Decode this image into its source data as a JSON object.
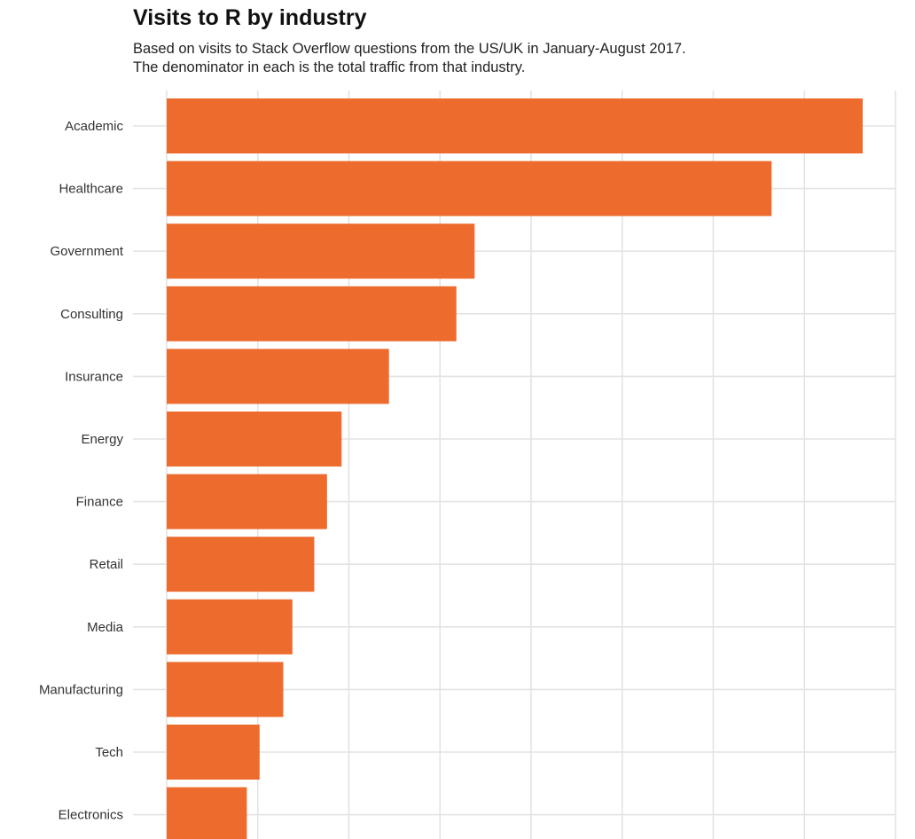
{
  "colors": {
    "bar": "#EC6B2D",
    "grid": "#e3e3e3",
    "background": "#ffffff"
  },
  "chart_data": {
    "type": "bar",
    "orientation": "horizontal",
    "title": "Visits to R by industry",
    "subtitle": [
      "Based on visits to Stack Overflow questions from the US/UK in January-August 2017.",
      "The denominator in each is the total traffic from that industry."
    ],
    "xlabel": "",
    "ylabel": "",
    "grid": true,
    "legend": "none",
    "categories": [
      "Academic",
      "Healthcare",
      "Government",
      "Consulting",
      "Insurance",
      "Energy",
      "Finance",
      "Retail",
      "Media",
      "Manufacturing",
      "Tech",
      "Electronics"
    ],
    "values": [
      3.82,
      3.32,
      1.69,
      1.59,
      1.22,
      0.96,
      0.88,
      0.81,
      0.69,
      0.64,
      0.51,
      0.44
    ],
    "xlim": [
      0,
      4
    ]
  }
}
